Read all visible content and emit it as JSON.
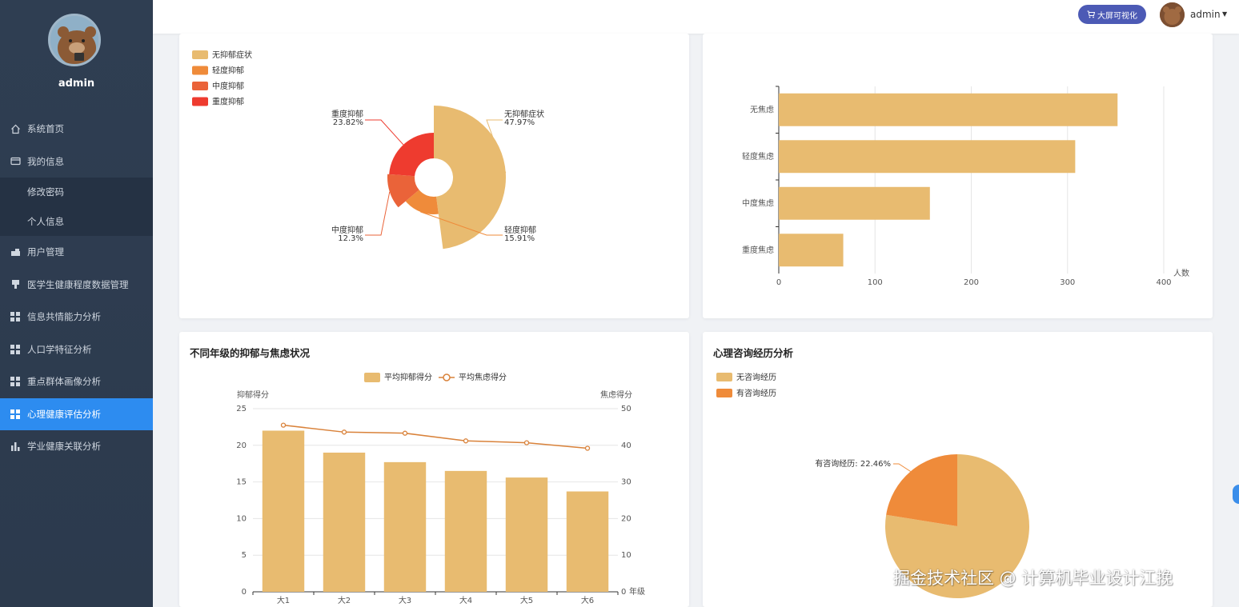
{
  "sidebar": {
    "username": "admin",
    "menu": [
      {
        "label": "系统首页",
        "icon": "home-icon"
      },
      {
        "label": "我的信息",
        "icon": "wallet-icon"
      }
    ],
    "submenu": [
      {
        "label": "修改密码"
      },
      {
        "label": "个人信息"
      }
    ],
    "menu2": [
      {
        "label": "用户管理",
        "icon": "user-manage-icon"
      },
      {
        "label": "医学生健康程度数据管理",
        "icon": "data-manage-icon"
      },
      {
        "label": "信息共情能力分析",
        "icon": "grid-icon"
      },
      {
        "label": "人口学特征分析",
        "icon": "grid-icon"
      },
      {
        "label": "重点群体画像分析",
        "icon": "grid-icon"
      },
      {
        "label": "心理健康评估分析",
        "icon": "grid-icon",
        "active": true
      },
      {
        "label": "学业健康关联分析",
        "icon": "bar-chart-icon"
      }
    ]
  },
  "topbar": {
    "bigscreen_label": "大屏可视化",
    "username": "admin"
  },
  "colors": {
    "sidebar_bg": "#2f3e52",
    "active": "#2d8cf0",
    "bar": "#e8bb70",
    "accent_orange": "#ef8b3a",
    "red": "#ee3b2f"
  },
  "chart_data": [
    {
      "type": "pie",
      "variant": "rose",
      "title": "",
      "legend": [
        "无抑郁症状",
        "轻度抑郁",
        "中度抑郁",
        "重度抑郁"
      ],
      "slices": [
        {
          "name": "无抑郁症状",
          "percent": "47.97%",
          "value": 47.97,
          "color": "#e8bb70"
        },
        {
          "name": "轻度抑郁",
          "percent": "15.91%",
          "value": 15.91,
          "color": "#ef8b3a"
        },
        {
          "name": "中度抑郁",
          "percent": "12.3%",
          "value": 12.3,
          "color": "#ea6339"
        },
        {
          "name": "重度抑郁",
          "percent": "23.82%",
          "value": 23.82,
          "color": "#ee3b2f"
        }
      ]
    },
    {
      "type": "bar",
      "orientation": "horizontal",
      "categories": [
        "无焦虑",
        "轻度焦虑",
        "中度焦虑",
        "重度焦虑"
      ],
      "values": [
        352,
        308,
        157,
        67
      ],
      "xlabel": "人数",
      "xlim": [
        0,
        400
      ],
      "xticks": [
        "0",
        "100",
        "200",
        "300",
        "400"
      ]
    },
    {
      "type": "bar+line",
      "title": "不同年级的抑郁与焦虑状况",
      "categories": [
        "大1",
        "大2",
        "大3",
        "大4",
        "大5",
        "大6"
      ],
      "series": [
        {
          "name": "平均抑郁得分",
          "type": "bar",
          "axis": "left",
          "values": [
            22,
            19,
            17.7,
            16.5,
            15.6,
            13.7
          ]
        },
        {
          "name": "平均焦虑得分",
          "type": "line",
          "axis": "right",
          "values": [
            45.5,
            43.6,
            43.3,
            41.2,
            40.7,
            39.2
          ]
        }
      ],
      "ylabel_left": "抑郁得分",
      "ylabel_right": "焦虑得分",
      "xlabel": "年级",
      "ylim_left": [
        0,
        25
      ],
      "ylim_right": [
        0,
        50
      ],
      "yticks_left": [
        "0",
        "5",
        "10",
        "15",
        "20",
        "25"
      ],
      "yticks_right": [
        "0",
        "10",
        "20",
        "30",
        "40",
        "50"
      ]
    },
    {
      "type": "pie",
      "title": "心理咨询经历分析",
      "legend": [
        "无咨询经历",
        "有咨询经历"
      ],
      "slices": [
        {
          "name": "无咨询经历",
          "value": 77.54,
          "color": "#e8bb70"
        },
        {
          "name": "有咨询经历",
          "value": 22.46,
          "color": "#ef8b3a",
          "label": "有咨询经历: 22.46%"
        }
      ]
    }
  ],
  "watermark": "掘金技术社区 @ 计算机毕业设计江挽"
}
